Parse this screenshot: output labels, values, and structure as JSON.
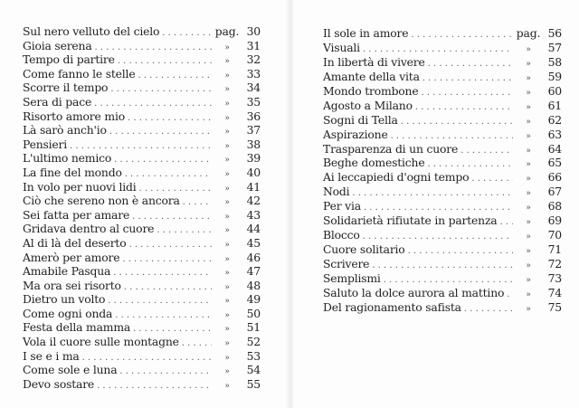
{
  "left_page": {
    "entries": [
      {
        "title": "Sul nero velluto del cielo",
        "marker": "pag.",
        "page": "30"
      },
      {
        "title": "Gioia serena",
        "marker": "»",
        "page": "31"
      },
      {
        "title": "Tempo di partire",
        "marker": "»",
        "page": "32"
      },
      {
        "title": "Come fanno le stelle",
        "marker": "»",
        "page": "33"
      },
      {
        "title": "Scorre il tempo",
        "marker": "»",
        "page": "34"
      },
      {
        "title": "Sera di pace",
        "marker": "»",
        "page": "35"
      },
      {
        "title": "Risorto amore mio",
        "marker": "»",
        "page": "36"
      },
      {
        "title": "Là sarò anch'io",
        "marker": "»",
        "page": "37"
      },
      {
        "title": "Pensieri",
        "marker": "»",
        "page": "38"
      },
      {
        "title": "L'ultimo nemico",
        "marker": "»",
        "page": "39"
      },
      {
        "title": "La fine del mondo",
        "marker": "»",
        "page": "40"
      },
      {
        "title": "In volo per nuovi lidi",
        "marker": "»",
        "page": "41"
      },
      {
        "title": "Ciò che sereno non è ancora",
        "marker": "»",
        "page": "42"
      },
      {
        "title": "Sei fatta per amare",
        "marker": "»",
        "page": "43"
      },
      {
        "title": "Gridava dentro al cuore",
        "marker": "»",
        "page": "44"
      },
      {
        "title": "Al di là del deserto",
        "marker": "»",
        "page": "45"
      },
      {
        "title": "Amerò per amore",
        "marker": "»",
        "page": "46"
      },
      {
        "title": "Amabile Pasqua",
        "marker": "»",
        "page": "47"
      },
      {
        "title": "Ma ora sei risorto",
        "marker": "»",
        "page": "48"
      },
      {
        "title": "Dietro un volto",
        "marker": "»",
        "page": "49"
      },
      {
        "title": "Come ogni onda",
        "marker": "»",
        "page": "50"
      },
      {
        "title": "Festa della mamma",
        "marker": "»",
        "page": "51"
      },
      {
        "title": "Vola il cuore sulle montagne",
        "marker": "»",
        "page": "52"
      },
      {
        "title": "I se e i ma",
        "marker": "»",
        "page": "53"
      },
      {
        "title": "Come sole e luna",
        "marker": "»",
        "page": "54"
      },
      {
        "title": "Devo sostare",
        "marker": "»",
        "page": "55"
      }
    ]
  },
  "right_page": {
    "entries": [
      {
        "title": "Il sole in amore",
        "marker": "pag.",
        "page": "56"
      },
      {
        "title": "Visuali",
        "marker": "»",
        "page": "57"
      },
      {
        "title": "In libertà di vivere",
        "marker": "»",
        "page": "58"
      },
      {
        "title": "Amante della vita",
        "marker": "»",
        "page": "59"
      },
      {
        "title": "Mondo trombone",
        "marker": "»",
        "page": "60"
      },
      {
        "title": "Agosto a Milano",
        "marker": "»",
        "page": "61"
      },
      {
        "title": "Sogni di Tella",
        "marker": "»",
        "page": "62"
      },
      {
        "title": "Aspirazione",
        "marker": "»",
        "page": "63"
      },
      {
        "title": "Trasparenza di un cuore",
        "marker": "»",
        "page": "64"
      },
      {
        "title": "Beghe domestiche",
        "marker": "»",
        "page": "65"
      },
      {
        "title": "Ai leccapiedi d'ogni tempo",
        "marker": "»",
        "page": "66"
      },
      {
        "title": "Nodi",
        "marker": "»",
        "page": "67"
      },
      {
        "title": "Per via",
        "marker": "»",
        "page": "68"
      },
      {
        "title": "Solidarietà rifiutate in partenza",
        "marker": "»",
        "page": "69"
      },
      {
        "title": "Blocco",
        "marker": "»",
        "page": "70"
      },
      {
        "title": "Cuore solitario",
        "marker": "»",
        "page": "71"
      },
      {
        "title": "Scrivere",
        "marker": "»",
        "page": "72"
      },
      {
        "title": "Semplismi",
        "marker": "»",
        "page": "73"
      },
      {
        "title": "Saluto la dolce aurora al mattino",
        "marker": "»",
        "page": "74"
      },
      {
        "title": "Del ragionamento safista",
        "marker": "»",
        "page": "75"
      }
    ]
  }
}
